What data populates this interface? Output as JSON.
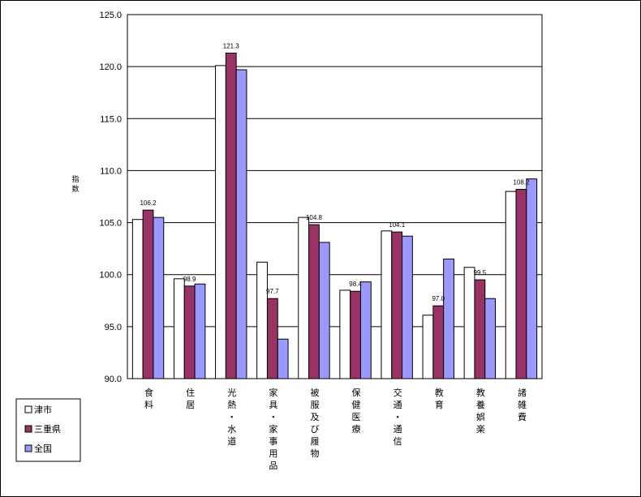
{
  "chart_data": {
    "type": "bar",
    "ylabel": "指数",
    "ylim": [
      90,
      125
    ],
    "yticks": [
      "90.0",
      "95.0",
      "100.0",
      "105.0",
      "110.0",
      "115.0",
      "120.0",
      "125.0"
    ],
    "grid": true,
    "legend_position": "bottom-left",
    "categories": [
      "食料",
      "住居",
      "光熱・水道",
      "家具・家事用品",
      "被服及び履物",
      "保健医療",
      "交通・通信",
      "教育",
      "教養娯楽",
      "諸雑費"
    ],
    "series": [
      {
        "name": "津市",
        "color": "#ffffff",
        "values": [
          105.3,
          99.6,
          120.1,
          101.2,
          105.5,
          98.5,
          104.2,
          96.1,
          100.7,
          108.0
        ]
      },
      {
        "name": "三重県",
        "color": "#993366",
        "values": [
          106.2,
          98.9,
          121.3,
          97.7,
          104.8,
          98.4,
          104.1,
          97.0,
          99.5,
          108.2
        ]
      },
      {
        "name": "全国",
        "color": "#9999ff",
        "values": [
          105.5,
          99.1,
          119.7,
          93.8,
          103.1,
          99.3,
          103.7,
          101.5,
          97.7,
          109.2
        ]
      }
    ],
    "data_labels": [
      "106.2",
      "98.9",
      "121.3",
      "97.7",
      "104.8",
      "98.4",
      "104.1",
      "97.0",
      "99.5",
      "108.2"
    ]
  }
}
